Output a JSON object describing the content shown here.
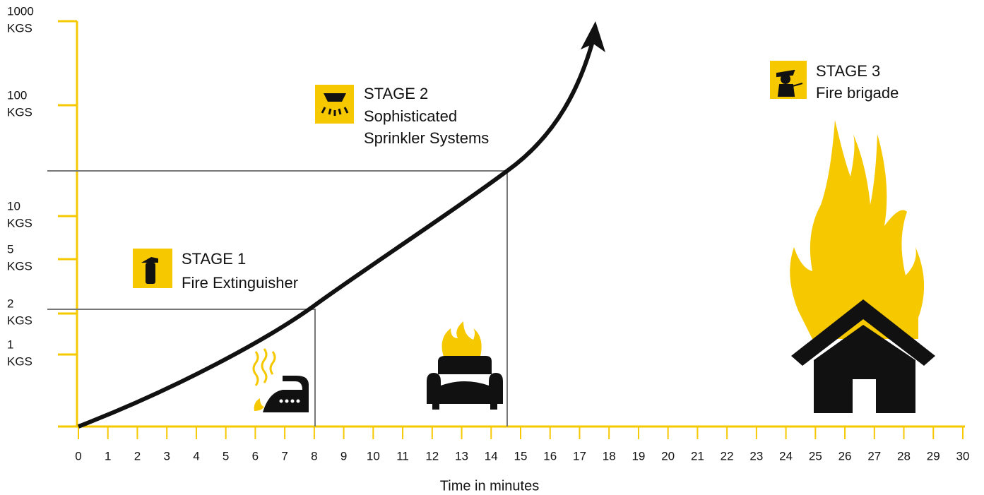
{
  "y_axis": {
    "ticks": [
      {
        "value": "1000",
        "unit": "KGS"
      },
      {
        "value": "100",
        "unit": "KGS"
      },
      {
        "value": "10",
        "unit": "KGS"
      },
      {
        "value": "5",
        "unit": "KGS"
      },
      {
        "value": "2",
        "unit": "KGS"
      },
      {
        "value": "1",
        "unit": "KGS"
      }
    ]
  },
  "x_axis": {
    "label": "Time in minutes",
    "ticks": [
      "0",
      "1",
      "2",
      "3",
      "4",
      "5",
      "6",
      "7",
      "8",
      "9",
      "10",
      "11",
      "12",
      "13",
      "14",
      "15",
      "16",
      "17",
      "18",
      "19",
      "20",
      "21",
      "22",
      "23",
      "24",
      "25",
      "26",
      "27",
      "28",
      "29",
      "30"
    ]
  },
  "stages": [
    {
      "title": "STAGE 1",
      "lines": [
        "Fire Extinguisher"
      ]
    },
    {
      "title": "STAGE 2",
      "lines": [
        "Sophisticated",
        "Sprinkler Systems"
      ]
    },
    {
      "title": "STAGE 3",
      "lines": [
        "Fire brigade"
      ]
    }
  ]
}
